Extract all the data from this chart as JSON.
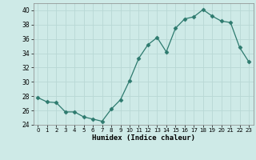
{
  "x": [
    0,
    1,
    2,
    3,
    4,
    5,
    6,
    7,
    8,
    9,
    10,
    11,
    12,
    13,
    14,
    15,
    16,
    17,
    18,
    19,
    20,
    21,
    22,
    23
  ],
  "y": [
    27.8,
    27.2,
    27.1,
    25.8,
    25.8,
    25.1,
    24.8,
    24.5,
    26.2,
    27.5,
    30.2,
    33.3,
    35.2,
    36.2,
    34.2,
    37.5,
    38.8,
    39.1,
    40.1,
    39.2,
    38.5,
    38.3,
    34.8,
    32.8
  ],
  "line_color": "#2d7a6e",
  "marker": "D",
  "marker_size": 2.5,
  "bg_color": "#ceeae7",
  "grid_color": "#b8d8d5",
  "xlabel": "Humidex (Indice chaleur)",
  "xlim": [
    -0.5,
    23.5
  ],
  "ylim": [
    24,
    41
  ],
  "yticks": [
    24,
    26,
    28,
    30,
    32,
    34,
    36,
    38,
    40
  ],
  "xticks": [
    0,
    1,
    2,
    3,
    4,
    5,
    6,
    7,
    8,
    9,
    10,
    11,
    12,
    13,
    14,
    15,
    16,
    17,
    18,
    19,
    20,
    21,
    22,
    23
  ]
}
